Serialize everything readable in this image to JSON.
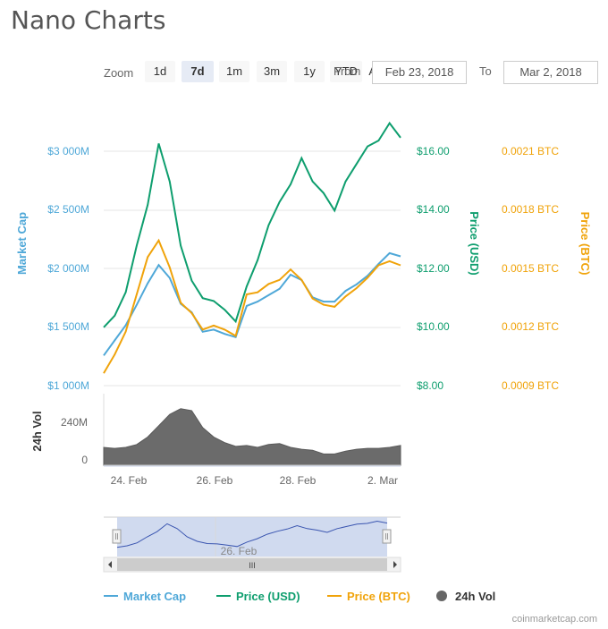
{
  "header": {
    "title": "Nano Charts"
  },
  "toolbar": {
    "zoom_label": "Zoom",
    "zoom_buttons": [
      "1d",
      "7d",
      "1m",
      "3m",
      "1y",
      "YTD",
      "ALL"
    ],
    "active_zoom": "7d",
    "from_label": "From",
    "from_value": "Feb 23, 2018",
    "to_label": "To",
    "to_value": "Mar 2, 2018"
  },
  "axes": {
    "market_cap": {
      "title": "Market Cap",
      "ticks": [
        "$1 000M",
        "$1 500M",
        "$2 000M",
        "$2 500M",
        "$3 000M"
      ],
      "color": "#4fa8d8"
    },
    "price_usd": {
      "title": "Price (USD)",
      "ticks": [
        "$8.00",
        "$10.00",
        "$12.00",
        "$14.00",
        "$16.00"
      ],
      "color": "#0e9e6e"
    },
    "price_btc": {
      "title": "Price (BTC)",
      "ticks": [
        "0.0009 BTC",
        "0.0012 BTC",
        "0.0015 BTC",
        "0.0018 BTC",
        "0.0021 BTC"
      ],
      "color": "#f0a30a"
    },
    "volume": {
      "title": "24h Vol",
      "ticks": [
        "0",
        "240M"
      ],
      "color": "#666666"
    },
    "x": {
      "ticks": [
        "24. Feb",
        "26. Feb",
        "28. Feb",
        "2. Mar"
      ]
    }
  },
  "navigator": {
    "label": "26. Feb",
    "scroll_glyph": "III"
  },
  "legend": [
    {
      "label": "Market Cap",
      "color": "#4fa8d8",
      "marker": "line"
    },
    {
      "label": "Price (USD)",
      "color": "#0e9e6e",
      "marker": "line"
    },
    {
      "label": "Price (BTC)",
      "color": "#f0a30a",
      "marker": "line"
    },
    {
      "label": "24h Vol",
      "color": "#666666",
      "marker": "circle"
    }
  ],
  "credit": "coinmarketcap.com",
  "chart_data": {
    "type": "line",
    "x_range": [
      "2018-02-23T18:00",
      "2018-03-02T12:00"
    ],
    "x": [
      "2018-02-23T18:00",
      "2018-02-24T00:00",
      "2018-02-24T06:00",
      "2018-02-24T12:00",
      "2018-02-24T18:00",
      "2018-02-25T00:00",
      "2018-02-25T06:00",
      "2018-02-25T12:00",
      "2018-02-25T18:00",
      "2018-02-26T00:00",
      "2018-02-26T06:00",
      "2018-02-26T12:00",
      "2018-02-26T18:00",
      "2018-02-27T00:00",
      "2018-02-27T06:00",
      "2018-02-27T12:00",
      "2018-02-27T18:00",
      "2018-02-28T00:00",
      "2018-02-28T06:00",
      "2018-02-28T12:00",
      "2018-02-28T18:00",
      "2018-03-01T00:00",
      "2018-03-01T06:00",
      "2018-03-01T12:00",
      "2018-03-01T18:00",
      "2018-03-02T00:00",
      "2018-03-02T06:00",
      "2018-03-02T12:00"
    ],
    "series": [
      {
        "name": "Price (USD)",
        "axis": "price_usd",
        "ylim": [
          8,
          17.6
        ],
        "values": [
          10.0,
          10.4,
          11.2,
          12.8,
          14.2,
          16.3,
          15.0,
          12.8,
          11.6,
          11.0,
          10.9,
          10.6,
          10.2,
          11.4,
          12.3,
          13.5,
          14.3,
          14.9,
          15.8,
          15.0,
          14.6,
          14.0,
          15.0,
          15.6,
          16.2,
          16.4,
          17.0,
          16.5
        ]
      },
      {
        "name": "Market Cap",
        "axis": "market_cap",
        "ylim": [
          1000,
          3600
        ],
        "values": [
          1280,
          1420,
          1560,
          1750,
          1950,
          2120,
          2000,
          1760,
          1680,
          1500,
          1520,
          1480,
          1450,
          1740,
          1780,
          1840,
          1900,
          2030,
          1980,
          1820,
          1780,
          1780,
          1880,
          1940,
          2020,
          2130,
          2230,
          2200
        ]
      },
      {
        "name": "Price (BTC)",
        "axis": "price_btc",
        "ylim": [
          0.0009,
          0.00225
        ],
        "values": [
          0.00096,
          0.00105,
          0.00116,
          0.00134,
          0.00152,
          0.0016,
          0.00147,
          0.0013,
          0.00125,
          0.00117,
          0.00119,
          0.00117,
          0.00114,
          0.00134,
          0.00135,
          0.00139,
          0.00141,
          0.00146,
          0.00141,
          0.00132,
          0.00129,
          0.00128,
          0.00133,
          0.00137,
          0.00142,
          0.00148,
          0.0015,
          0.00148
        ]
      },
      {
        "name": "24h Vol",
        "axis": "volume",
        "type": "area",
        "ylim": [
          0,
          380
        ],
        "values": [
          95,
          90,
          95,
          110,
          150,
          210,
          270,
          300,
          290,
          200,
          150,
          120,
          100,
          105,
          95,
          110,
          115,
          95,
          85,
          80,
          60,
          60,
          75,
          85,
          90,
          90,
          95,
          105
        ]
      }
    ]
  }
}
